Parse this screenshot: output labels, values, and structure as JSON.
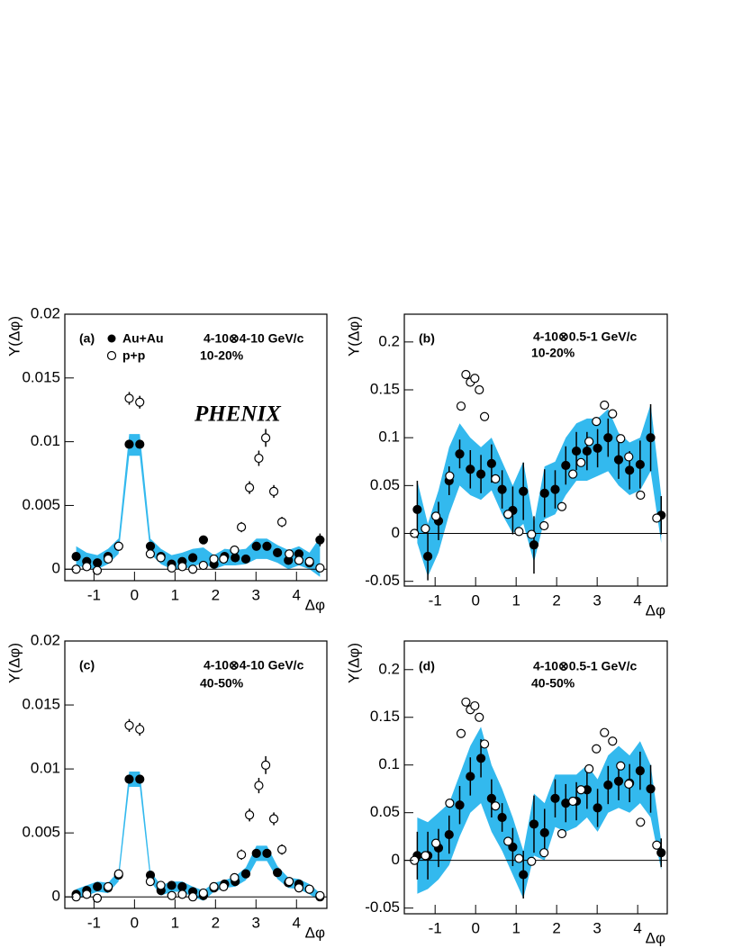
{
  "chart_data": [
    {
      "type": "scatter",
      "panel_label": "(a)",
      "x_label": "Δφ",
      "y_label": "Y(Δφ)",
      "annotations": [
        "4-10⊗4-10 GeV/c",
        "10-20%",
        "PHENIX"
      ],
      "xlim": [
        -1.72,
        4.75
      ],
      "xticks": [
        -1,
        0,
        1,
        2,
        3,
        4
      ],
      "ylim": [
        -0.0009,
        0.02
      ],
      "yticks": [
        0,
        0.005,
        0.01,
        0.015,
        0.02
      ],
      "zero_line": true,
      "band": {
        "color": "#33b9ee",
        "low": [
          0.0003,
          0.0001,
          0.0,
          0.0004,
          0.0012,
          0.0089,
          0.0089,
          0.0012,
          0.0004,
          0.0,
          0.0,
          0.0002,
          0.0005,
          0.0,
          0.0003,
          0.0003,
          0.0004,
          0.0008,
          0.0008,
          0.0005,
          0.0,
          0.0003,
          0.0,
          -0.0006
        ],
        "high": [
          0.0018,
          0.0013,
          0.0011,
          0.0016,
          0.0024,
          0.0106,
          0.0106,
          0.0024,
          0.0016,
          0.0011,
          0.0013,
          0.0016,
          0.0017,
          0.0011,
          0.0016,
          0.0015,
          0.0016,
          0.0024,
          0.0024,
          0.0019,
          0.0015,
          0.0018,
          0.0013,
          0.0025
        ]
      },
      "series": [
        {
          "name": "Au+Au",
          "color": "#000000",
          "marker": "filled",
          "x": [
            -1.44,
            -1.18,
            -0.916,
            -0.654,
            -0.393,
            -0.131,
            0.131,
            0.393,
            0.654,
            0.916,
            1.178,
            1.44,
            1.702,
            1.963,
            2.225,
            2.487,
            2.749,
            3.01,
            3.27,
            3.53,
            3.8,
            4.06,
            4.32,
            4.58
          ],
          "values": [
            0.001,
            0.0006,
            0.0005,
            0.001,
            0.0018,
            0.0098,
            0.0098,
            0.0018,
            0.001,
            0.0004,
            0.0006,
            0.0009,
            0.0023,
            0.0004,
            0.001,
            0.0009,
            0.0008,
            0.0018,
            0.0018,
            0.0013,
            0.0007,
            0.0012,
            0.0005,
            0.0023
          ],
          "errors": [
            0.0002,
            0.0002,
            0.0002,
            0.0002,
            0.0002,
            0.0003,
            0.0003,
            0.0002,
            0.0002,
            0.0002,
            0.0002,
            0.0002,
            0.0003,
            0.0002,
            0.0002,
            0.0002,
            0.0002,
            0.0002,
            0.0002,
            0.0002,
            0.0002,
            0.0002,
            0.0002,
            0.0005
          ]
        },
        {
          "name": "p+p",
          "color": "#000000",
          "marker": "open",
          "x": [
            -1.44,
            -1.18,
            -0.92,
            -0.65,
            -0.39,
            -0.13,
            0.13,
            0.39,
            0.65,
            0.92,
            1.18,
            1.44,
            1.7,
            1.96,
            2.2,
            2.47,
            2.64,
            2.84,
            3.07,
            3.24,
            3.44,
            3.64,
            3.82,
            4.06,
            4.32,
            4.58
          ],
          "values": [
            0,
            0.0002,
            -0.0001,
            0.0008,
            0.0018,
            0.0134,
            0.0131,
            0.0012,
            0.0009,
            0.0001,
            0.0002,
            0.0,
            0.0003,
            0.0008,
            0.0008,
            0.0015,
            0.0033,
            0.0064,
            0.0087,
            0.0103,
            0.0061,
            0.0037,
            0.0012,
            0.0007,
            0.0006,
            0.0001
          ],
          "errors": [
            0.0002,
            0.0002,
            0.0002,
            0.0002,
            0.0002,
            0.0005,
            0.0005,
            0.0002,
            0.0002,
            0.0002,
            0.0002,
            0.0002,
            0.0002,
            0.0002,
            0.0003,
            0.0003,
            0.0004,
            0.0005,
            0.0006,
            0.0007,
            0.0005,
            0.0004,
            0.0003,
            0.0002,
            0.0002,
            0.0002
          ]
        }
      ]
    },
    {
      "type": "scatter",
      "panel_label": "(b)",
      "x_label": "Δφ",
      "y_label": "Y(Δφ)",
      "annotations": [
        "4-10⊗0.5-1 GeV/c",
        "10-20%"
      ],
      "xlim": [
        -1.76,
        4.73
      ],
      "xticks": [
        -1,
        0,
        1,
        2,
        3,
        4
      ],
      "ylim": [
        -0.055,
        0.229
      ],
      "yticks": [
        -0.05,
        0,
        0.05,
        0.1,
        0.15,
        0.2
      ],
      "zero_line": true,
      "band": {
        "color": "#33b9ee",
        "low": [
          -0.01,
          -0.045,
          -0.02,
          0.02,
          0.05,
          0.04,
          0.035,
          0.045,
          0.02,
          0.0,
          0.01,
          -0.03,
          0.015,
          0.02,
          0.04,
          0.055,
          0.055,
          0.06,
          0.065,
          0.05,
          0.04,
          0.045,
          0.065,
          -0.01
        ],
        "high": [
          0.055,
          0.01,
          0.045,
          0.09,
          0.115,
          0.1,
          0.09,
          0.1,
          0.075,
          0.05,
          0.075,
          0.01,
          0.07,
          0.075,
          0.1,
          0.115,
          0.12,
          0.12,
          0.13,
          0.105,
          0.095,
          0.1,
          0.135,
          0.04
        ]
      },
      "series": [
        {
          "color": "#000000",
          "marker": "filled",
          "x": [
            -1.44,
            -1.18,
            -0.916,
            -0.654,
            -0.393,
            -0.131,
            0.131,
            0.393,
            0.654,
            0.916,
            1.178,
            1.44,
            1.702,
            1.963,
            2.225,
            2.487,
            2.749,
            3.01,
            3.27,
            3.53,
            3.8,
            4.06,
            4.32,
            4.58
          ],
          "values": [
            0.025,
            -0.024,
            0.013,
            0.055,
            0.083,
            0.067,
            0.062,
            0.073,
            0.046,
            0.024,
            0.044,
            -0.012,
            0.042,
            0.046,
            0.071,
            0.086,
            0.086,
            0.089,
            0.1,
            0.077,
            0.066,
            0.072,
            0.1,
            0.019
          ],
          "errors": [
            0.03,
            0.025,
            0.02,
            0.015,
            0.015,
            0.02,
            0.02,
            0.02,
            0.02,
            0.025,
            0.03,
            0.03,
            0.025,
            0.02,
            0.02,
            0.02,
            0.02,
            0.02,
            0.02,
            0.02,
            0.02,
            0.025,
            0.035,
            0.02
          ]
        },
        {
          "color": "#000000",
          "marker": "open",
          "x": [
            -1.51,
            -1.24,
            -0.98,
            -0.64,
            -0.36,
            -0.24,
            -0.13,
            -0.02,
            0.09,
            0.22,
            0.49,
            0.8,
            1.07,
            1.38,
            1.69,
            2.13,
            2.4,
            2.6,
            2.8,
            2.98,
            3.18,
            3.38,
            3.58,
            3.78,
            4.07,
            4.47
          ],
          "values": [
            0.0,
            0.005,
            0.018,
            0.06,
            0.133,
            0.166,
            0.158,
            0.162,
            0.15,
            0.122,
            0.057,
            0.02,
            0.002,
            -0.001,
            0.008,
            0.028,
            0.062,
            0.074,
            0.096,
            0.117,
            0.134,
            0.125,
            0.099,
            0.08,
            0.04,
            0.016
          ]
        }
      ]
    },
    {
      "type": "scatter",
      "panel_label": "(c)",
      "x_label": "Δφ",
      "y_label": "Y(Δφ)",
      "annotations": [
        "4-10⊗4-10 GeV/c",
        "40-50%"
      ],
      "xlim": [
        -1.72,
        4.75
      ],
      "xticks": [
        -1,
        0,
        1,
        2,
        3,
        4
      ],
      "ylim": [
        -0.0009,
        0.02
      ],
      "yticks": [
        0,
        0.005,
        0.01,
        0.015,
        0.02
      ],
      "zero_line": true,
      "band": {
        "color": "#33b9ee",
        "low": [
          -0.0002,
          0.0001,
          0.0004,
          0.0003,
          0.0012,
          0.0086,
          0.0086,
          0.0012,
          0.0001,
          0.0004,
          0.0004,
          0.0,
          -0.0003,
          0.0004,
          0.0007,
          0.0008,
          0.0013,
          0.0028,
          0.0028,
          0.0014,
          0.0007,
          0.0006,
          0.0002,
          -0.0003
        ],
        "high": [
          0.0006,
          0.0009,
          0.0012,
          0.0011,
          0.002,
          0.0098,
          0.0098,
          0.002,
          0.0009,
          0.0012,
          0.0012,
          0.0008,
          0.0005,
          0.0011,
          0.0013,
          0.0016,
          0.0023,
          0.004,
          0.004,
          0.0024,
          0.0015,
          0.0014,
          0.001,
          0.0003
        ]
      },
      "series": [
        {
          "color": "#000000",
          "marker": "filled",
          "x": [
            -1.44,
            -1.18,
            -0.916,
            -0.654,
            -0.393,
            -0.131,
            0.131,
            0.393,
            0.654,
            0.916,
            1.178,
            1.44,
            1.702,
            1.963,
            2.225,
            2.487,
            2.749,
            3.01,
            3.27,
            3.53,
            3.8,
            4.06,
            4.32,
            4.58
          ],
          "values": [
            0.0002,
            0.0005,
            0.0008,
            0.0007,
            0.0017,
            0.0092,
            0.0092,
            0.0017,
            0.0005,
            0.0009,
            0.0008,
            0.0004,
            0.0001,
            0.0007,
            0.001,
            0.0012,
            0.0018,
            0.0034,
            0.0034,
            0.0019,
            0.0011,
            0.001,
            0.0006,
            0.0
          ],
          "errors": [
            0.0002,
            0.0002,
            0.0002,
            0.0002,
            0.0002,
            0.0003,
            0.0003,
            0.0002,
            0.0002,
            0.0002,
            0.0002,
            0.0002,
            0.0002,
            0.0002,
            0.0002,
            0.0002,
            0.0002,
            0.0002,
            0.0002,
            0.0002,
            0.0002,
            0.0002,
            0.0002,
            0.0002
          ]
        },
        {
          "color": "#000000",
          "marker": "open",
          "x": [
            -1.44,
            -1.18,
            -0.92,
            -0.65,
            -0.39,
            -0.13,
            0.13,
            0.39,
            0.65,
            0.92,
            1.18,
            1.44,
            1.7,
            1.96,
            2.2,
            2.47,
            2.64,
            2.84,
            3.07,
            3.24,
            3.44,
            3.64,
            3.82,
            4.06,
            4.32,
            4.58
          ],
          "values": [
            0,
            0.0002,
            -0.0001,
            0.0008,
            0.0018,
            0.0134,
            0.0131,
            0.0012,
            0.0009,
            0.0001,
            0.0002,
            0.0,
            0.0003,
            0.0008,
            0.0008,
            0.0015,
            0.0033,
            0.0064,
            0.0087,
            0.0103,
            0.0061,
            0.0037,
            0.0012,
            0.0007,
            0.0006,
            0.0001
          ],
          "errors": [
            0.0002,
            0.0002,
            0.0002,
            0.0002,
            0.0002,
            0.0005,
            0.0005,
            0.0002,
            0.0002,
            0.0002,
            0.0002,
            0.0002,
            0.0002,
            0.0002,
            0.0003,
            0.0003,
            0.0004,
            0.0005,
            0.0006,
            0.0007,
            0.0005,
            0.0004,
            0.0003,
            0.0002,
            0.0002,
            0.0002
          ]
        }
      ]
    },
    {
      "type": "scatter",
      "panel_label": "(d)",
      "x_label": "Δφ",
      "y_label": "Y(Δφ)",
      "annotations": [
        "4-10⊗0.5-1 GeV/c",
        "40-50%"
      ],
      "xlim": [
        -1.76,
        4.73
      ],
      "xticks": [
        -1,
        0,
        1,
        2,
        3,
        4
      ],
      "ylim": [
        -0.056,
        0.23
      ],
      "yticks": [
        -0.05,
        0,
        0.05,
        0.1,
        0.15,
        0.2
      ],
      "zero_line": true,
      "band": {
        "color": "#33b9ee",
        "low": [
          -0.035,
          -0.03,
          -0.02,
          -0.005,
          0.025,
          0.05,
          0.06,
          0.03,
          0.01,
          -0.015,
          -0.04,
          0.005,
          0.0,
          0.035,
          0.03,
          0.035,
          0.045,
          0.03,
          0.05,
          0.055,
          0.05,
          0.06,
          0.045,
          -0.01
        ],
        "high": [
          0.045,
          0.04,
          0.05,
          0.06,
          0.09,
          0.12,
          0.14,
          0.1,
          0.075,
          0.045,
          0.01,
          0.07,
          0.06,
          0.09,
          0.09,
          0.09,
          0.1,
          0.085,
          0.11,
          0.12,
          0.11,
          0.125,
          0.1,
          0.02
        ]
      },
      "series": [
        {
          "color": "#000000",
          "marker": "filled",
          "x": [
            -1.44,
            -1.18,
            -0.916,
            -0.654,
            -0.393,
            -0.131,
            0.131,
            0.393,
            0.654,
            0.916,
            1.178,
            1.44,
            1.702,
            1.963,
            2.225,
            2.487,
            2.749,
            3.01,
            3.27,
            3.53,
            3.8,
            4.06,
            4.32,
            4.58
          ],
          "values": [
            0.005,
            0.005,
            0.013,
            0.027,
            0.058,
            0.088,
            0.107,
            0.065,
            0.045,
            0.014,
            -0.015,
            0.038,
            0.029,
            0.065,
            0.06,
            0.062,
            0.074,
            0.055,
            0.079,
            0.083,
            0.081,
            0.094,
            0.075,
            0.008
          ],
          "errors": [
            0.025,
            0.025,
            0.02,
            0.02,
            0.02,
            0.02,
            0.02,
            0.02,
            0.015,
            0.02,
            0.025,
            0.03,
            0.025,
            0.02,
            0.02,
            0.02,
            0.02,
            0.02,
            0.02,
            0.02,
            0.02,
            0.02,
            0.025,
            0.015
          ]
        },
        {
          "color": "#000000",
          "marker": "open",
          "x": [
            -1.51,
            -1.24,
            -0.98,
            -0.64,
            -0.36,
            -0.24,
            -0.13,
            -0.02,
            0.09,
            0.22,
            0.49,
            0.8,
            1.07,
            1.38,
            1.69,
            2.13,
            2.4,
            2.6,
            2.8,
            2.98,
            3.18,
            3.38,
            3.58,
            3.78,
            4.07,
            4.47
          ],
          "values": [
            0.0,
            0.005,
            0.018,
            0.06,
            0.133,
            0.166,
            0.158,
            0.162,
            0.15,
            0.122,
            0.057,
            0.02,
            0.002,
            -0.001,
            0.008,
            0.028,
            0.062,
            0.074,
            0.096,
            0.117,
            0.134,
            0.125,
            0.099,
            0.08,
            0.04,
            0.016
          ]
        }
      ]
    }
  ]
}
